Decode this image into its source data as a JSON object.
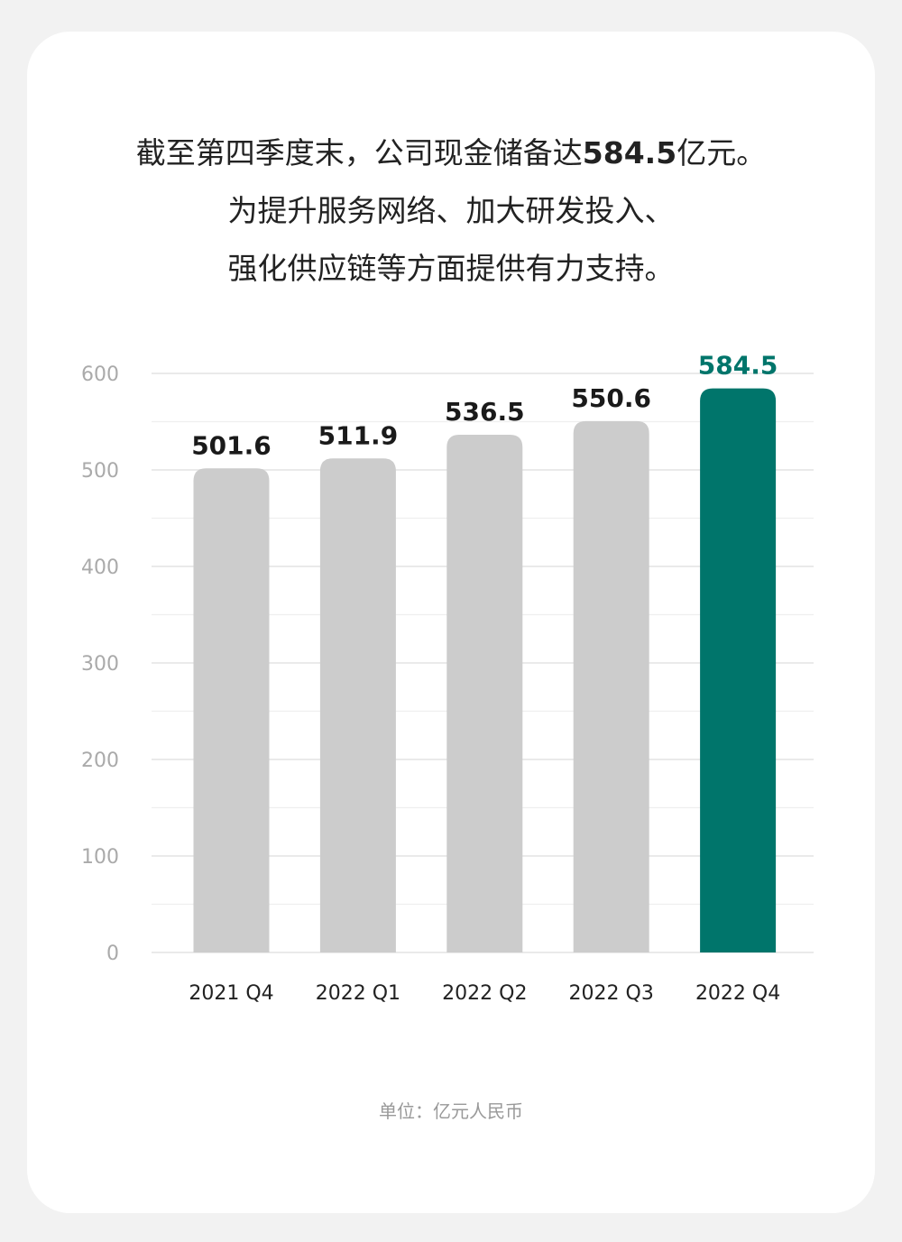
{
  "headline": {
    "line1_pre": "截至第四季度末，公司现金储备达",
    "line1_value": "584.5",
    "line1_post": "亿元。",
    "line2": "为提升服务网络、加大研发投入、",
    "line3": "强化供应链等方面提供有力支持。"
  },
  "chart_data": {
    "type": "bar",
    "categories": [
      "2021 Q4",
      "2022 Q1",
      "2022 Q2",
      "2022 Q3",
      "2022 Q4"
    ],
    "values": [
      501.6,
      511.9,
      536.5,
      550.6,
      584.5
    ],
    "value_labels": [
      "501.6",
      "511.9",
      "536.5",
      "550.6",
      "584.5"
    ],
    "yticks": [
      0,
      100,
      200,
      300,
      400,
      500,
      600
    ],
    "ylim": [
      0,
      600
    ],
    "grid": true,
    "colors": {
      "default_bar": "#cccccc",
      "highlight_bar": "#00756b",
      "label": "#1a1a1a",
      "highlight_label": "#00756b",
      "grid": "#e3e3e3",
      "tick": "#aaaaaa"
    },
    "highlight_index": 4
  },
  "footer": {
    "unit": "单位：亿元人民币"
  }
}
